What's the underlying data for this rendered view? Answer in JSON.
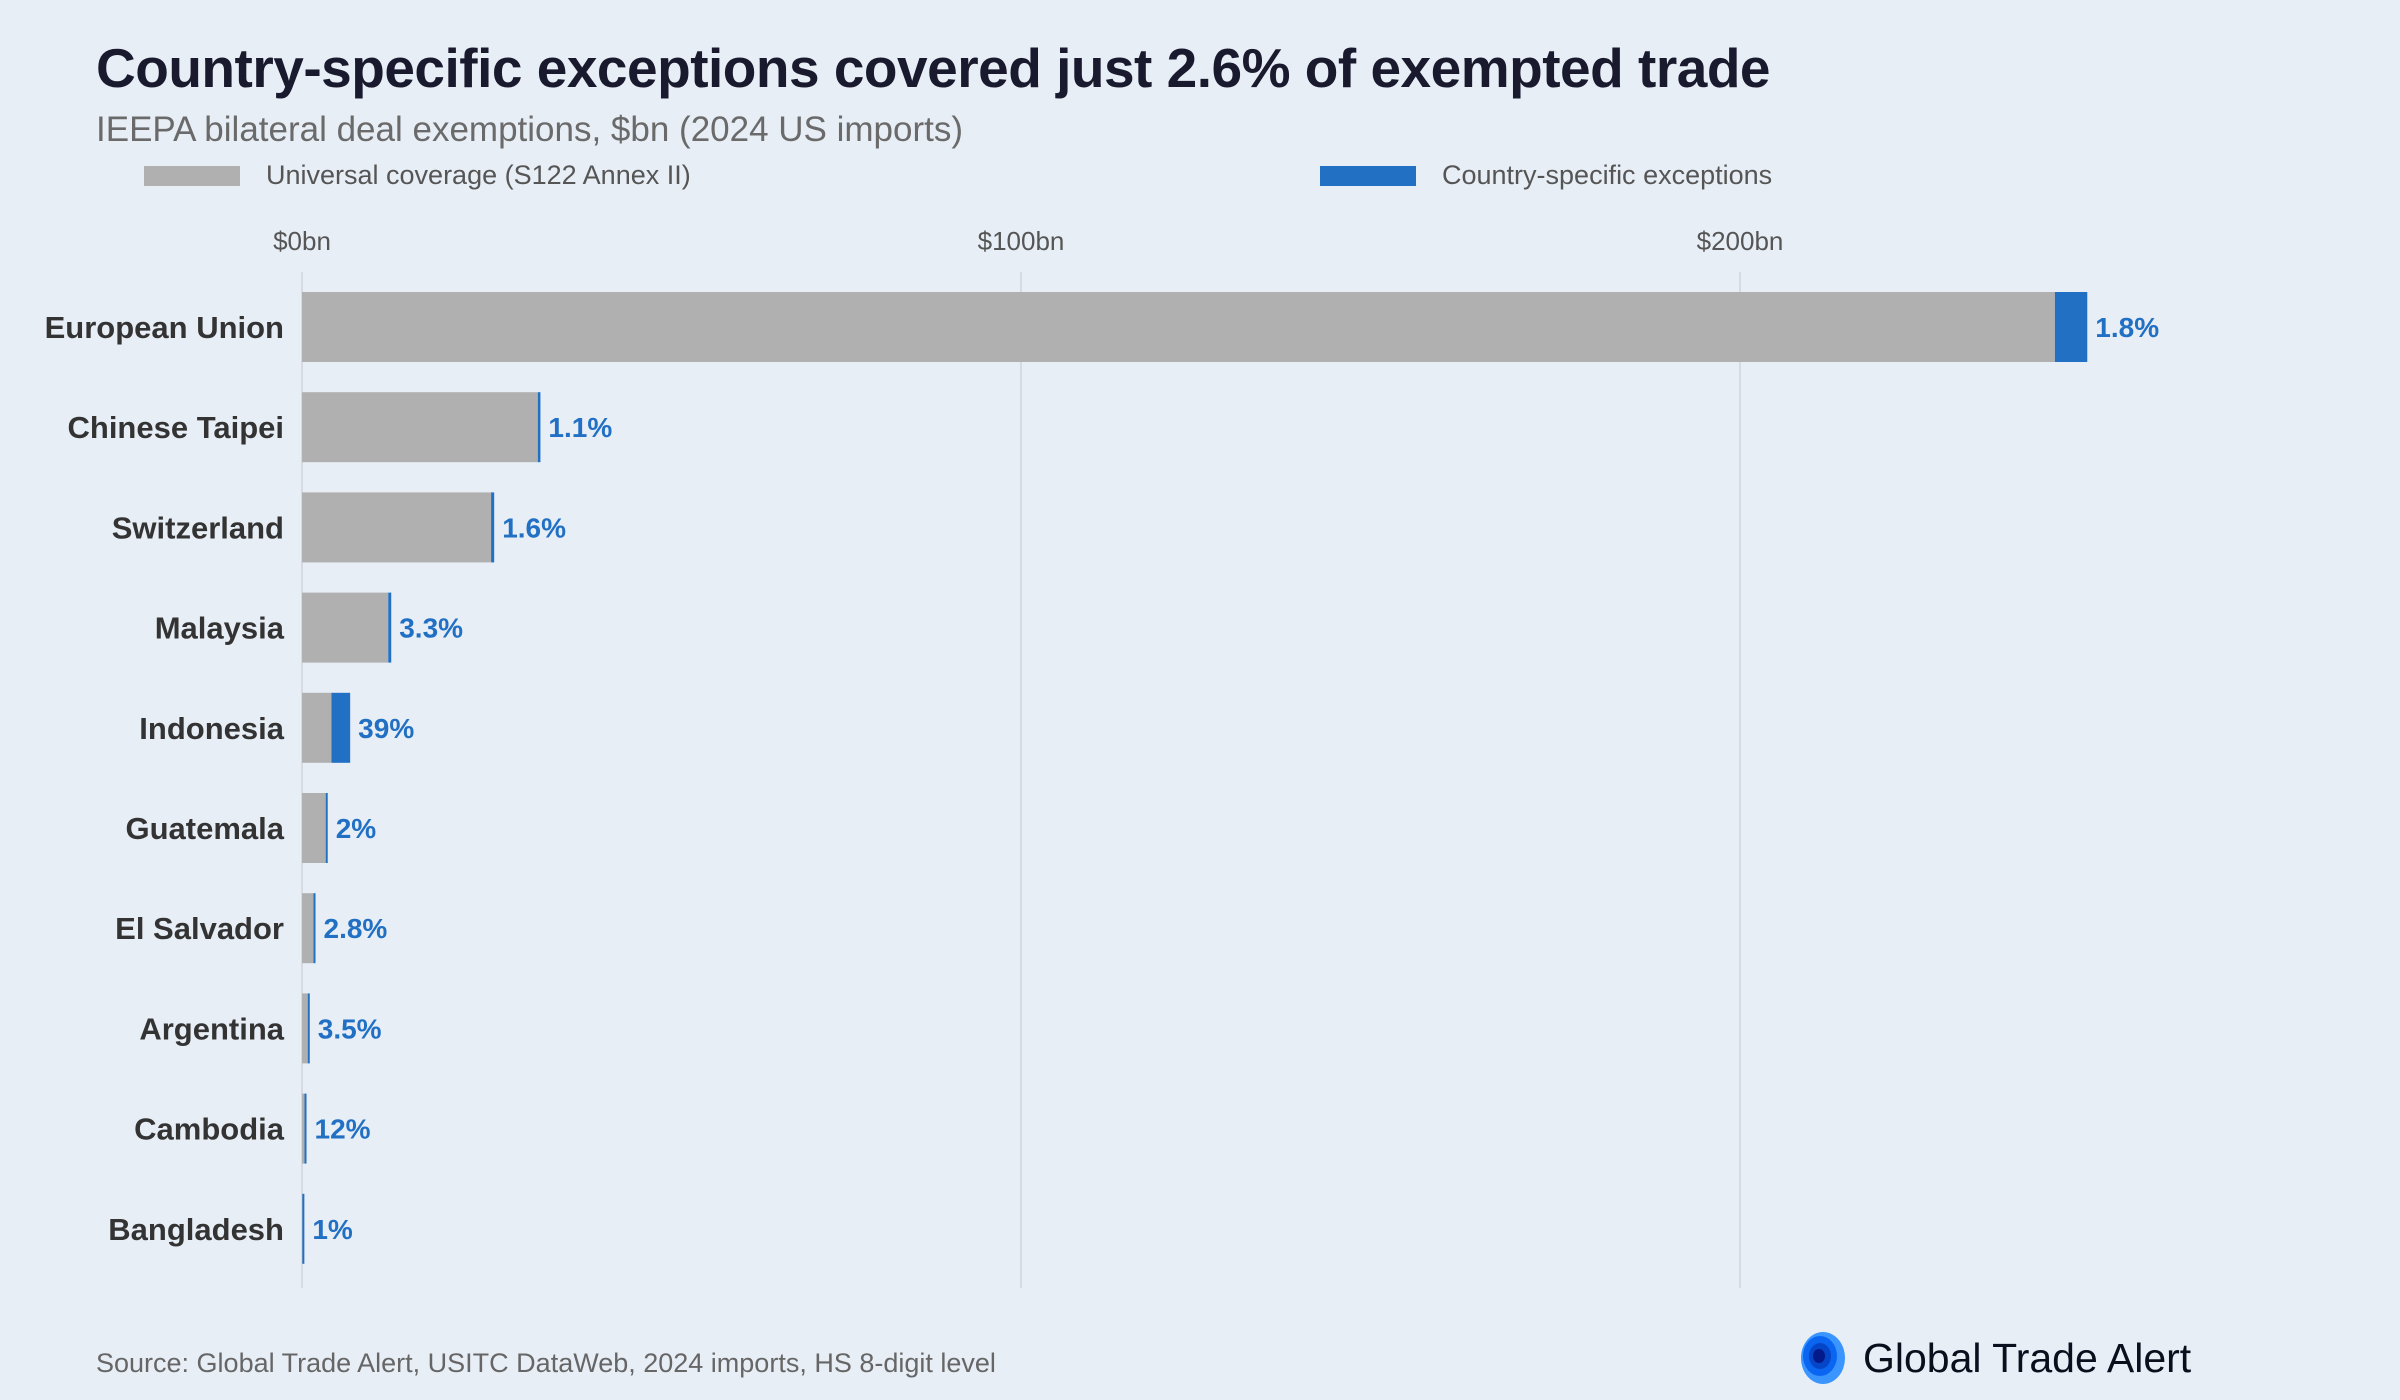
{
  "title": "Country-specific exceptions covered just 2.6% of exempted trade",
  "subtitle": "IEEPA bilateral deal exemptions, $bn (2024 US imports)",
  "source": "Source: Global Trade Alert, USITC DataWeb, 2024 imports, HS 8-digit level",
  "logo": {
    "text": "Global Trade Alert",
    "icon": "global-trade-alert-logo-icon"
  },
  "colors": {
    "universal": "#b0b0b0",
    "country_specific": "#2170c4",
    "background": "#e8eef6"
  },
  "chart_data": {
    "type": "bar",
    "orientation": "horizontal",
    "stacked": true,
    "title": "Country-specific exceptions covered just 2.6% of exempted trade",
    "subtitle": "IEEPA bilateral deal exemptions, $bn (2024 US imports)",
    "xlim": [
      0,
      260
    ],
    "x_ticks": [
      0,
      100,
      200
    ],
    "x_tick_labels": [
      "$0bn",
      "$100bn",
      "$200bn"
    ],
    "x_axis_position": "top",
    "grid": "vertical",
    "legend": "top",
    "categories": [
      "European Union",
      "Chinese Taipei",
      "Switzerland",
      "Malaysia",
      "Indonesia",
      "Guatemala",
      "El Salvador",
      "Argentina",
      "Cambodia",
      "Bangladesh"
    ],
    "series": [
      {
        "name": "Universal coverage (S122 Annex II)",
        "color": "#b0b0b0",
        "values": [
          243.8,
          32.8,
          26.3,
          12.0,
          4.1,
          3.3,
          1.6,
          0.8,
          0.35,
          0.05
        ]
      },
      {
        "name": "Country-specific exceptions",
        "color": "#2170c4",
        "values": [
          4.5,
          0.36,
          0.43,
          0.41,
          2.6,
          0.07,
          0.05,
          0.03,
          0.05,
          0.0005
        ]
      }
    ],
    "data_labels": [
      "1.8%",
      "1.1%",
      "1.6%",
      "3.3%",
      "39%",
      "2%",
      "2.8%",
      "3.5%",
      "12%",
      "1%"
    ]
  }
}
